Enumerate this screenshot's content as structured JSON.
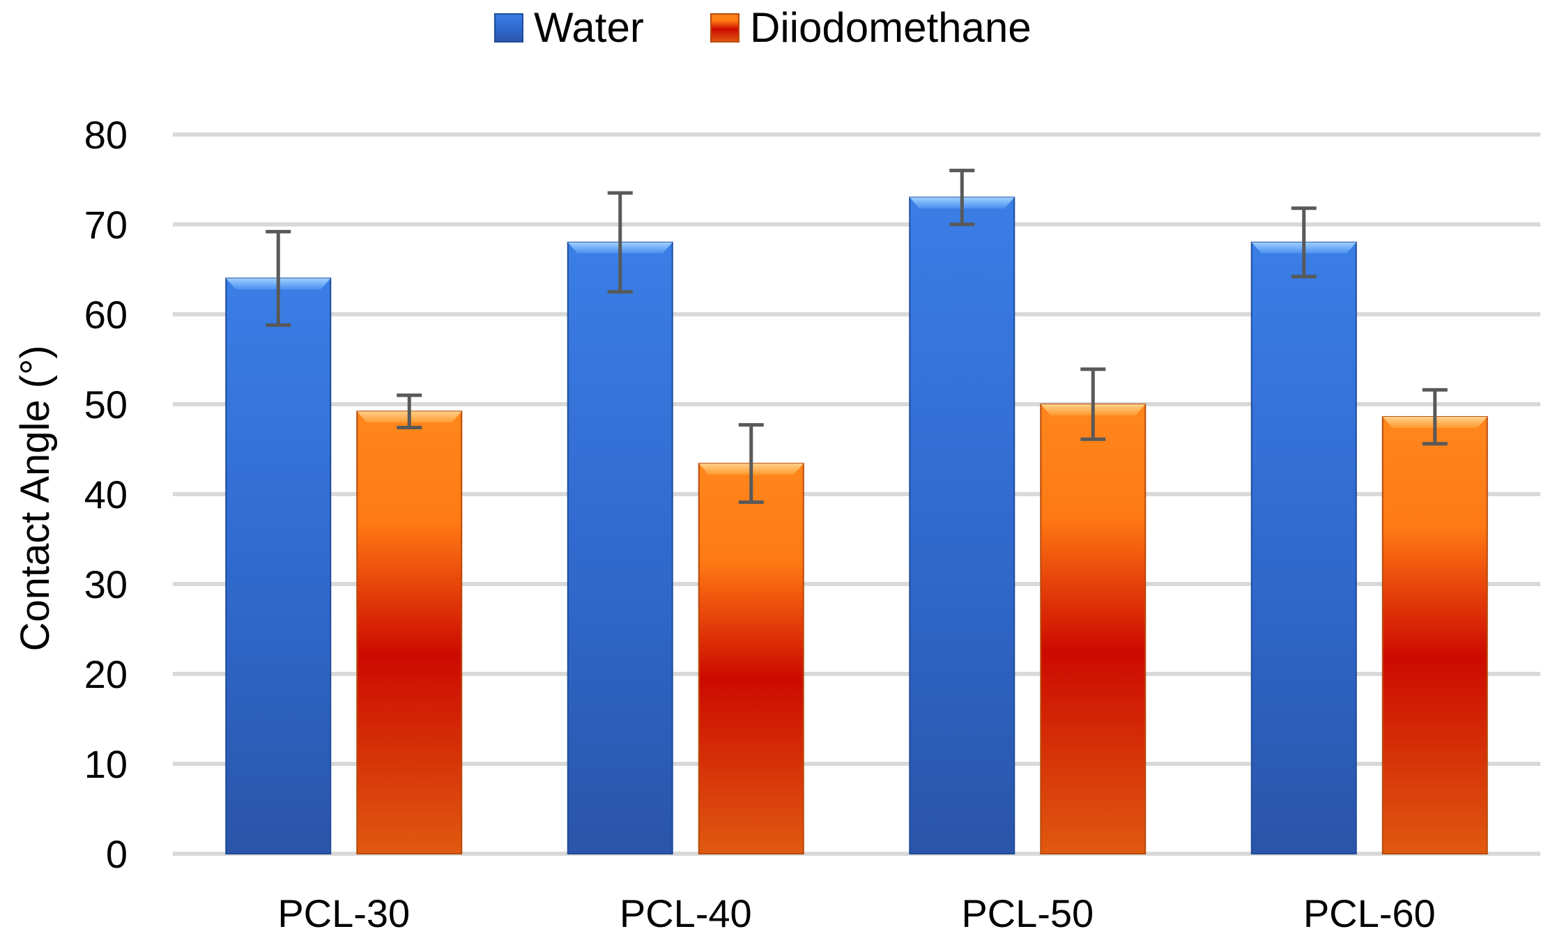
{
  "chart_data": {
    "type": "bar",
    "title": "",
    "xlabel": "",
    "ylabel": "Contact Angle (°)",
    "ylim": [
      0,
      80
    ],
    "yticks": [
      0,
      10,
      20,
      30,
      40,
      50,
      60,
      70,
      80
    ],
    "grid": true,
    "legend_position": "top-center",
    "categories": [
      "PCL-30",
      "PCL-40",
      "PCL-50",
      "PCL-60"
    ],
    "series": [
      {
        "name": "Water",
        "color": "#2f6fd6",
        "values": [
          64,
          68,
          73,
          68
        ],
        "error": [
          5.2,
          5.5,
          3.0,
          3.8
        ]
      },
      {
        "name": "Diiodomethane",
        "color": "#ff7f1a",
        "values": [
          49.2,
          43.4,
          50,
          48.6
        ],
        "error": [
          1.8,
          4.3,
          3.9,
          3.0
        ]
      }
    ]
  }
}
